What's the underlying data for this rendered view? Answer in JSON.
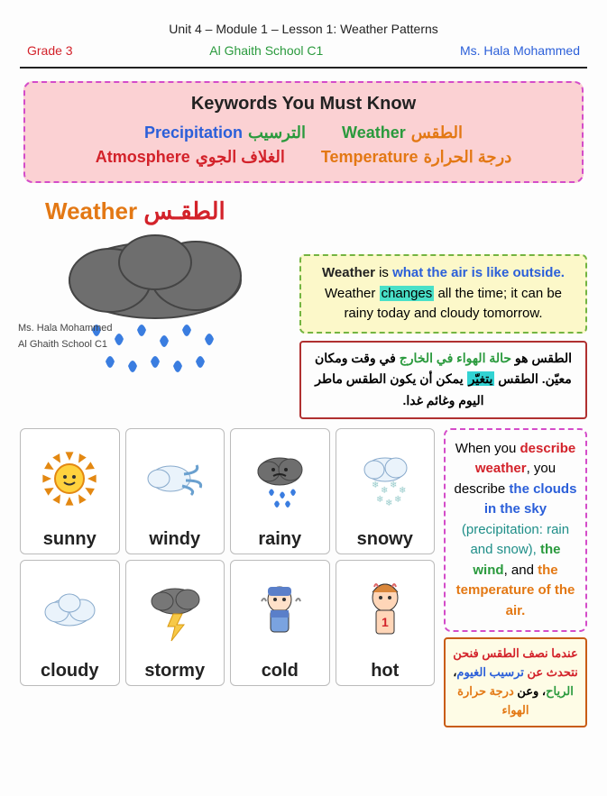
{
  "header": {
    "unit_line": "Unit 4 – Module 1 – Lesson 1: Weather Patterns",
    "grade": "Grade 3",
    "school": "Al Ghaith School C1",
    "teacher": "Ms. Hala Mohammed"
  },
  "colors": {
    "red": "#d3222a",
    "green": "#2a9a3d",
    "blue": "#2b5fd9",
    "orange": "#e37814",
    "magenta": "#d44cc9",
    "dark": "#4a4a2a",
    "teal": "#1e8e88"
  },
  "keywords": {
    "title": "Keywords You Must Know",
    "row1": [
      {
        "en": "Precipitation",
        "en_color": "#2b5fd9",
        "ar": "الترسيب",
        "ar_color": "#2a9a3d"
      },
      {
        "en": "Weather",
        "en_color": "#2a9a3d",
        "ar": "الطقس",
        "ar_color": "#e37814"
      }
    ],
    "row2": [
      {
        "en": "Atmosphere",
        "en_color": "#d3222a",
        "ar": "الغلاف الجوي",
        "ar_color": "#d3222a"
      },
      {
        "en": "Temperature",
        "en_color": "#e37814",
        "ar": "درجة الحرارة",
        "ar_color": "#e37814"
      }
    ]
  },
  "section_title": {
    "en": "Weather",
    "en_color": "#e37814",
    "ar": "الطقـس",
    "ar_color": "#d3222a"
  },
  "side_labels": {
    "l1": "Ms. Hala Mohammed",
    "l2": "Al Ghaith School C1"
  },
  "definition_en": {
    "p1a": "Weather",
    "p1b": " is ",
    "p1c": "what the air is like outside.",
    "p2a": "Weather ",
    "p2hl": "changes",
    "p2b": " all the time; it can be rainy today and cloudy tomorrow."
  },
  "definition_ar": {
    "t1": "الطقس هو ",
    "t1b": "حالة الهواء في الخارج",
    "t1c": " في وقت ومكان معيّن. الطقس ",
    "hl": "يتغيّر",
    "t2": " يمكن أن يكون الطقس ماطر اليوم وغائم غدا."
  },
  "cards": [
    {
      "label": "sunny",
      "icon": "sun"
    },
    {
      "label": "windy",
      "icon": "wind"
    },
    {
      "label": "rainy",
      "icon": "rain"
    },
    {
      "label": "snowy",
      "icon": "snow"
    },
    {
      "label": "cloudy",
      "icon": "cloud"
    },
    {
      "label": "stormy",
      "icon": "storm"
    },
    {
      "label": "cold",
      "icon": "cold"
    },
    {
      "label": "hot",
      "icon": "hot"
    }
  ],
  "describe_en": {
    "a": "When you ",
    "b": "describe weather",
    "c": ", you describe ",
    "d": "the clouds in the sky",
    "e": " (precipitation: rain and snow), ",
    "f": "the wind",
    "g": ", and ",
    "h": "the temperature of the air."
  },
  "describe_ar": {
    "a": "عندما نصف الطقس فنحن نتحدث عن ",
    "b": "ترسيب الغيوم",
    "c": "، ",
    "d": "الرياح",
    "e": "، وعن ",
    "f": "درجة حرارة الهواء"
  }
}
